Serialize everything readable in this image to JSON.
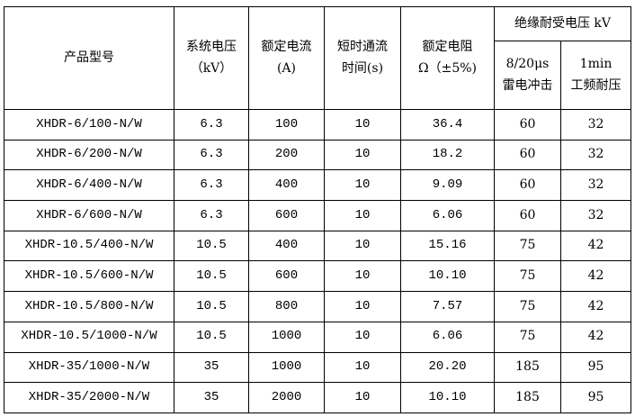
{
  "headers": {
    "model": "产品型号",
    "system_voltage": [
      "系统电压",
      "（kV）"
    ],
    "rated_current": [
      "额定电流",
      "(A)"
    ],
    "short_time": [
      "短时通流",
      "时间(s)"
    ],
    "rated_resistance": [
      "额定电阻",
      "Ω（±5%)"
    ],
    "insulation_group": "绝缘耐受电压 kV",
    "lightning": [
      "8/20μs",
      "雷电冲击"
    ],
    "power_freq": [
      "1min",
      "工频耐压"
    ]
  },
  "rows": [
    [
      "XHDR-6/100-N/W",
      "6.3",
      "100",
      "10",
      "36.4",
      "60",
      "32"
    ],
    [
      "XHDR-6/200-N/W",
      "6.3",
      "200",
      "10",
      "18.2",
      "60",
      "32"
    ],
    [
      "XHDR-6/400-N/W",
      "6.3",
      "400",
      "10",
      "9.09",
      "60",
      "32"
    ],
    [
      "XHDR-6/600-N/W",
      "6.3",
      "600",
      "10",
      "6.06",
      "60",
      "32"
    ],
    [
      "XHDR-10.5/400-N/W",
      "10.5",
      "400",
      "10",
      "15.16",
      "75",
      "42"
    ],
    [
      "XHDR-10.5/600-N/W",
      "10.5",
      "600",
      "10",
      "10.10",
      "75",
      "42"
    ],
    [
      "XHDR-10.5/800-N/W",
      "10.5",
      "800",
      "10",
      "7.57",
      "75",
      "42"
    ],
    [
      "XHDR-10.5/1000-N/W",
      "10.5",
      "1000",
      "10",
      "6.06",
      "75",
      "42"
    ],
    [
      "XHDR-35/1000-N/W",
      "35",
      "1000",
      "10",
      "20.20",
      "185",
      "95"
    ],
    [
      "XHDR-35/2000-N/W",
      "35",
      "2000",
      "10",
      "10.10",
      "185",
      "95"
    ]
  ]
}
